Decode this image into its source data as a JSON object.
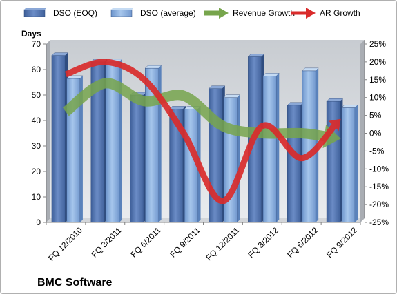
{
  "chart_data": {
    "type": "bar",
    "title": "",
    "footer_label": "BMC Software",
    "ylabel": "Days",
    "y2label": "",
    "categories": [
      "FQ 12/2010",
      "FQ 3/2011",
      "FQ 6/2011",
      "FQ 9/2011",
      "FQ 12/2011",
      "FQ 3/2012",
      "FQ 6/2012",
      "FQ 9/2012"
    ],
    "ylim": [
      0,
      70
    ],
    "yticks": [
      0,
      10,
      20,
      30,
      40,
      50,
      60,
      70
    ],
    "y2lim": [
      -25,
      25
    ],
    "y2ticks": [
      "25%",
      "20%",
      "15%",
      "10%",
      "5%",
      "0%",
      "-5%",
      "-10%",
      "-15%",
      "-20%",
      "-25%"
    ],
    "y2tick_values": [
      25,
      20,
      15,
      10,
      5,
      0,
      -5,
      -10,
      -15,
      -20,
      -25
    ],
    "legend_position": "top",
    "grid": false,
    "series": [
      {
        "name": "DSO (EOQ)",
        "kind": "bar",
        "axis": "left",
        "color": "#5b7bb4",
        "values": [
          65.5,
          63,
          50,
          44.5,
          52.5,
          65,
          46,
          47.5
        ]
      },
      {
        "name": "DSO (average)",
        "kind": "bar",
        "axis": "left",
        "color": "#8fb4e3",
        "values": [
          56.5,
          63,
          60.5,
          44.5,
          49,
          57.5,
          59.5,
          45
        ]
      },
      {
        "name": "Revenue Growth",
        "kind": "arrow-line",
        "axis": "right",
        "color": "#77a54c",
        "values": [
          6,
          14,
          9,
          10.5,
          2,
          0,
          0,
          -1.5
        ]
      },
      {
        "name": "AR Growth",
        "kind": "arrow-line",
        "axis": "right",
        "color": "#d92b2b",
        "values": [
          16.5,
          20,
          15,
          0,
          -19,
          2,
          -7,
          4
        ]
      }
    ]
  }
}
